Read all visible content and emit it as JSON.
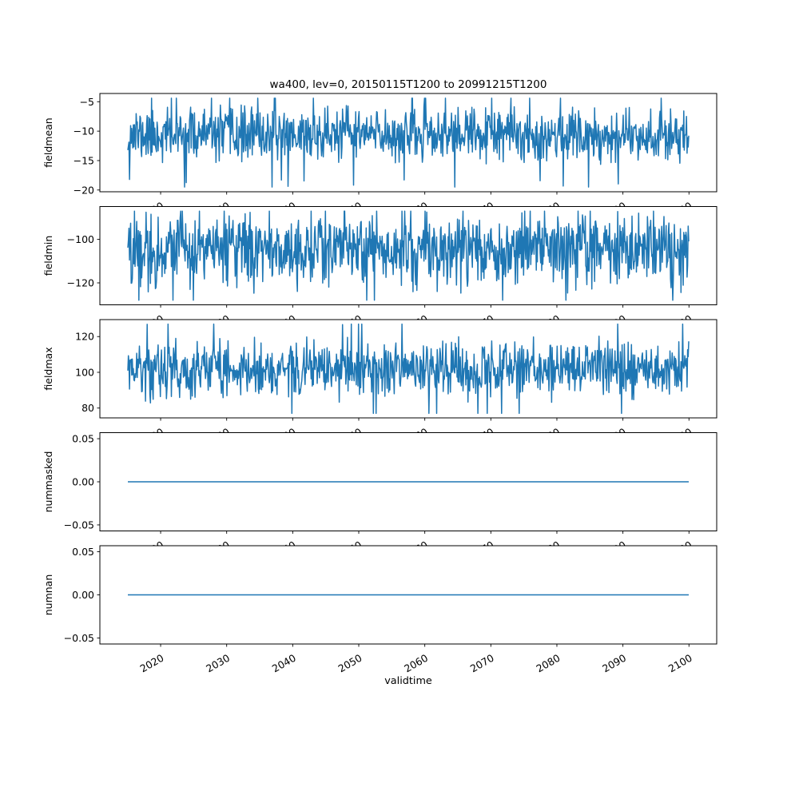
{
  "figure": {
    "title": "wa400, lev=0, 20150115T1200 to 20991215T1200",
    "xlabel": "validtime",
    "background": "#ffffff",
    "text_color": "#000000",
    "line_color": "#1f77b4",
    "xlim": [
      2010.8,
      2104.2
    ],
    "xticks": [
      2020,
      2030,
      2040,
      2050,
      2060,
      2070,
      2080,
      2090,
      2100
    ],
    "xtick_labels": [
      "2020",
      "2030",
      "2040",
      "2050",
      "2060",
      "2070",
      "2080",
      "2090",
      "2100"
    ]
  },
  "chart_data": [
    {
      "type": "line",
      "ylabel": "fieldmean",
      "x_start": 2015.04,
      "x_end": 2099.96,
      "n_points": 1020,
      "ylim": [
        -20.3,
        -3.6
      ],
      "yticks": [
        -5,
        -10,
        -15,
        -20
      ],
      "ytick_labels": [
        "−5",
        "−10",
        "−15",
        "−20"
      ],
      "series": {
        "name": "fieldmean",
        "baseline": -10.6,
        "noise_std": 2.3,
        "min": -19.5,
        "max": -4.4,
        "seed": 11,
        "tail_threshold": 2.2,
        "tail_boost": 1.5
      }
    },
    {
      "type": "line",
      "ylabel": "fieldmin",
      "x_start": 2015.04,
      "x_end": 2099.96,
      "n_points": 1020,
      "ylim": [
        -130.1,
        -84.9
      ],
      "yticks": [
        -100,
        -120
      ],
      "ytick_labels": [
        "−100",
        "−120"
      ],
      "series": {
        "name": "fieldmin",
        "baseline": -104.5,
        "noise_std": 8.5,
        "min": -128,
        "max": -87,
        "seed": 22,
        "tail_threshold": 2.4,
        "tail_boost": 1.3
      }
    },
    {
      "type": "line",
      "ylabel": "fieldmax",
      "x_start": 2015.04,
      "x_end": 2099.96,
      "n_points": 1020,
      "ylim": [
        74.5,
        129.5
      ],
      "yticks": [
        120,
        100,
        80
      ],
      "ytick_labels": [
        "120",
        "100",
        "80"
      ],
      "series": {
        "name": "fieldmax",
        "baseline": 101.5,
        "noise_std": 8.0,
        "min": 77,
        "max": 127,
        "seed": 33,
        "tail_threshold": 2.4,
        "tail_boost": 1.3
      }
    },
    {
      "type": "line",
      "ylabel": "nummasked",
      "x_start": 2015.04,
      "x_end": 2099.96,
      "n_points": 1020,
      "ylim": [
        -0.057,
        0.057
      ],
      "yticks": [
        0.05,
        0.0,
        -0.05
      ],
      "ytick_labels": [
        "0.05",
        "0.00",
        "−0.05"
      ],
      "series": {
        "name": "nummasked",
        "baseline": 0,
        "noise_std": 0,
        "min": 0,
        "max": 0,
        "seed": 44,
        "tail_threshold": 3,
        "tail_boost": 1
      }
    },
    {
      "type": "line",
      "ylabel": "numnan",
      "x_start": 2015.04,
      "x_end": 2099.96,
      "n_points": 1020,
      "ylim": [
        -0.057,
        0.057
      ],
      "yticks": [
        0.05,
        0.0,
        -0.05
      ],
      "ytick_labels": [
        "0.05",
        "0.00",
        "−0.05"
      ],
      "series": {
        "name": "numnan",
        "baseline": 0,
        "noise_std": 0,
        "min": 0,
        "max": 0,
        "seed": 55,
        "tail_threshold": 3,
        "tail_boost": 1
      }
    }
  ]
}
